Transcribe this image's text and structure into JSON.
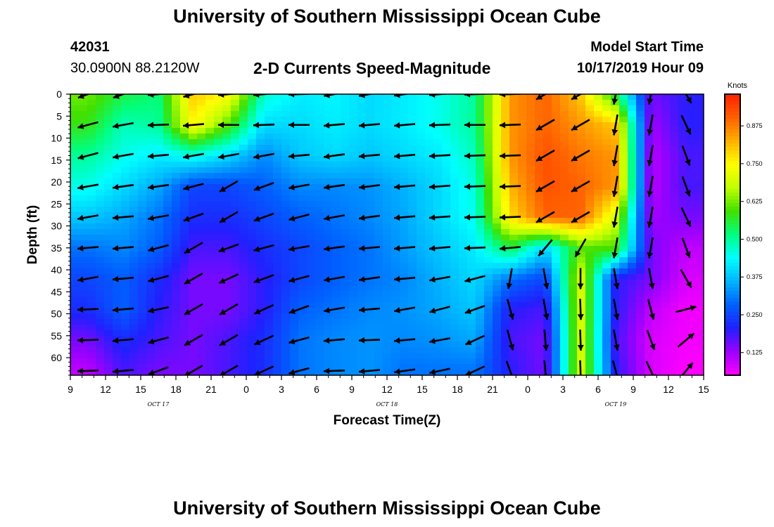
{
  "header": {
    "title": "University of Southern Mississippi Ocean Cube",
    "station_id": "42031",
    "location": "30.0900N 88.2120W",
    "subtitle": "2-D Currents Speed-Magnitude",
    "model_start_label": "Model Start Time",
    "model_start_value": "10/17/2019 Hour 09"
  },
  "footer": {
    "title": "University of Southern Mississippi Ocean Cube"
  },
  "chart_data": {
    "type": "heatmap",
    "title": "2-D Currents Speed-Magnitude",
    "xlabel": "Forecast Time(Z)",
    "ylabel": "Depth (ft)",
    "x_ticks": [
      "9",
      "12",
      "15",
      "18",
      "21",
      "0",
      "3",
      "6",
      "9",
      "12",
      "15",
      "18",
      "21",
      "0",
      "3",
      "6",
      "9",
      "12",
      "15"
    ],
    "x_range_hours": [
      0,
      54
    ],
    "date_labels": [
      {
        "text": "OCT 17",
        "hour": 7.5
      },
      {
        "text": "OCT 18",
        "hour": 27
      },
      {
        "text": "OCT 19",
        "hour": 46.5
      }
    ],
    "y_ticks": [
      "0",
      "5",
      "10",
      "15",
      "20",
      "25",
      "30",
      "35",
      "40",
      "45",
      "50",
      "55",
      "60"
    ],
    "ylim": [
      0,
      64
    ],
    "colorbar": {
      "label": "Knots",
      "ticks": [
        "0.125",
        "0.250",
        "0.375",
        "0.500",
        "0.625",
        "0.750",
        "0.875"
      ],
      "range": [
        0.05,
        0.98
      ],
      "colors": [
        "#ff00ff",
        "#9b00ff",
        "#2020ff",
        "#0060ff",
        "#00b4ff",
        "#00ffff",
        "#00ff80",
        "#40e000",
        "#c0ff00",
        "#ffff00",
        "#ffb000",
        "#ff6000",
        "#ff2000"
      ]
    },
    "depth_levels_ft": [
      0,
      7,
      14,
      21,
      28,
      35,
      42,
      49,
      56,
      63
    ],
    "time_columns_hours": [
      1.5,
      4.5,
      7.5,
      10.5,
      13.5,
      16.5,
      19.5,
      22.5,
      25.5,
      28.5,
      31.5,
      34.5,
      37.5,
      40.5,
      43.5,
      46.5,
      49.5,
      52.5
    ],
    "speed_knots": [
      [
        0.62,
        0.55,
        0.52,
        0.8,
        0.75,
        0.47,
        0.42,
        0.43,
        0.4,
        0.42,
        0.45,
        0.5,
        0.85,
        0.9,
        0.8,
        0.55,
        0.15,
        0.2
      ],
      [
        0.58,
        0.48,
        0.5,
        0.75,
        0.6,
        0.4,
        0.4,
        0.42,
        0.4,
        0.42,
        0.45,
        0.5,
        0.85,
        0.9,
        0.85,
        0.8,
        0.12,
        0.2
      ],
      [
        0.5,
        0.45,
        0.42,
        0.45,
        0.4,
        0.32,
        0.38,
        0.4,
        0.38,
        0.4,
        0.42,
        0.48,
        0.85,
        0.92,
        0.88,
        0.85,
        0.1,
        0.18
      ],
      [
        0.45,
        0.4,
        0.35,
        0.25,
        0.25,
        0.28,
        0.32,
        0.32,
        0.33,
        0.36,
        0.4,
        0.46,
        0.82,
        0.92,
        0.9,
        0.85,
        0.1,
        0.18
      ],
      [
        0.38,
        0.35,
        0.3,
        0.22,
        0.22,
        0.25,
        0.28,
        0.3,
        0.32,
        0.35,
        0.4,
        0.45,
        0.78,
        0.9,
        0.9,
        0.7,
        0.12,
        0.15
      ],
      [
        0.3,
        0.32,
        0.28,
        0.18,
        0.18,
        0.22,
        0.25,
        0.28,
        0.3,
        0.34,
        0.38,
        0.42,
        0.55,
        0.4,
        0.6,
        0.6,
        0.15,
        0.1
      ],
      [
        0.25,
        0.28,
        0.22,
        0.15,
        0.15,
        0.2,
        0.25,
        0.28,
        0.3,
        0.32,
        0.36,
        0.4,
        0.3,
        0.25,
        0.7,
        0.2,
        0.15,
        0.08
      ],
      [
        0.22,
        0.28,
        0.2,
        0.15,
        0.15,
        0.2,
        0.28,
        0.3,
        0.32,
        0.33,
        0.35,
        0.38,
        0.2,
        0.18,
        0.7,
        0.2,
        0.1,
        0.06
      ],
      [
        0.15,
        0.22,
        0.18,
        0.15,
        0.18,
        0.22,
        0.3,
        0.32,
        0.33,
        0.32,
        0.33,
        0.35,
        0.18,
        0.15,
        0.7,
        0.18,
        0.08,
        0.06
      ],
      [
        0.1,
        0.18,
        0.15,
        0.15,
        0.18,
        0.22,
        0.3,
        0.32,
        0.33,
        0.3,
        0.3,
        0.3,
        0.2,
        0.15,
        0.7,
        0.2,
        0.08,
        0.05
      ]
    ],
    "vector_direction_deg": [
      [
        -160,
        -160,
        -175,
        -165,
        -175,
        -175,
        -178,
        -170,
        -170,
        -172,
        -175,
        -178,
        -178,
        -150,
        -150,
        -100,
        -100,
        -60
      ],
      [
        -165,
        -170,
        -178,
        -175,
        -180,
        -178,
        -180,
        -175,
        -175,
        -175,
        -178,
        -180,
        -178,
        -150,
        -150,
        -100,
        -100,
        -65
      ],
      [
        -165,
        -170,
        -175,
        -170,
        -170,
        -170,
        -175,
        -172,
        -175,
        -175,
        -177,
        -178,
        -178,
        -150,
        -150,
        -100,
        -100,
        -70
      ],
      [
        -170,
        -172,
        -172,
        -165,
        -150,
        -160,
        -170,
        -172,
        -173,
        -175,
        -176,
        -178,
        -178,
        -150,
        -150,
        -100,
        -100,
        -70
      ],
      [
        -170,
        -175,
        -170,
        -160,
        -150,
        -160,
        -165,
        -170,
        -172,
        -175,
        -176,
        -178,
        -178,
        -150,
        -150,
        -100,
        -100,
        -65
      ],
      [
        -175,
        -175,
        -165,
        -150,
        -160,
        -165,
        -170,
        -172,
        -175,
        -175,
        -175,
        -178,
        -175,
        -130,
        -120,
        -100,
        -100,
        -70
      ],
      [
        -170,
        -175,
        -165,
        -150,
        -155,
        -160,
        -165,
        -170,
        -172,
        -175,
        -170,
        -165,
        -100,
        -80,
        -90,
        -80,
        -80,
        -60
      ],
      [
        -178,
        -175,
        -168,
        -150,
        -150,
        -155,
        -160,
        -170,
        -175,
        -170,
        -165,
        -160,
        -75,
        -80,
        -88,
        -80,
        -75,
        15
      ],
      [
        -178,
        -175,
        -165,
        -150,
        -150,
        -155,
        -165,
        -175,
        -178,
        -175,
        -170,
        -155,
        -75,
        -85,
        -88,
        -80,
        -70,
        40
      ],
      [
        -178,
        -175,
        -160,
        -150,
        -150,
        -155,
        -165,
        -178,
        -175,
        -172,
        -168,
        -155,
        -70,
        -85,
        -88,
        -75,
        -65,
        50
      ]
    ]
  }
}
